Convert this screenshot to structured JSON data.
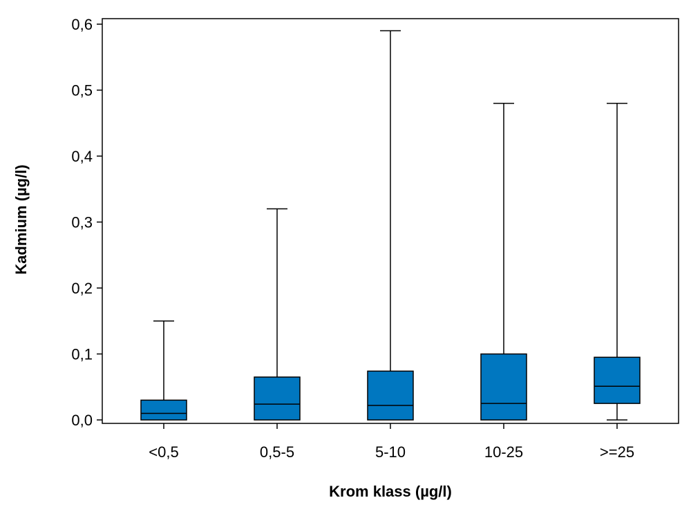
{
  "chart_data": {
    "type": "box",
    "title": "",
    "xlabel": "Krom klass (µg/l)",
    "ylabel": "Kadmium (µg/l)",
    "ylim": [
      0,
      0.6
    ],
    "y_ticks": [
      {
        "value": 0.0,
        "label": "0,0"
      },
      {
        "value": 0.1,
        "label": "0,1"
      },
      {
        "value": 0.2,
        "label": "0,2"
      },
      {
        "value": 0.3,
        "label": "0,3"
      },
      {
        "value": 0.4,
        "label": "0,4"
      },
      {
        "value": 0.5,
        "label": "0,5"
      },
      {
        "value": 0.6,
        "label": "0,6"
      }
    ],
    "categories": [
      "<0,5",
      "0,5-5",
      "5-10",
      "10-25",
      ">=25"
    ],
    "boxes": [
      {
        "category": "<0,5",
        "min": 0.0,
        "q1": 0.0,
        "median": 0.01,
        "q3": 0.03,
        "max": 0.15
      },
      {
        "category": "0,5-5",
        "min": 0.0,
        "q1": 0.0,
        "median": 0.024,
        "q3": 0.065,
        "max": 0.32
      },
      {
        "category": "5-10",
        "min": 0.0,
        "q1": 0.0,
        "median": 0.022,
        "q3": 0.074,
        "max": 0.59
      },
      {
        "category": "10-25",
        "min": 0.0,
        "q1": 0.0,
        "median": 0.025,
        "q3": 0.1,
        "max": 0.48
      },
      {
        "category": ">=25",
        "min": 0.0,
        "q1": 0.025,
        "median": 0.051,
        "q3": 0.095,
        "max": 0.48
      }
    ],
    "grid": false,
    "legend": "none",
    "box_color": "#0077C0",
    "line_color": "#000000"
  }
}
